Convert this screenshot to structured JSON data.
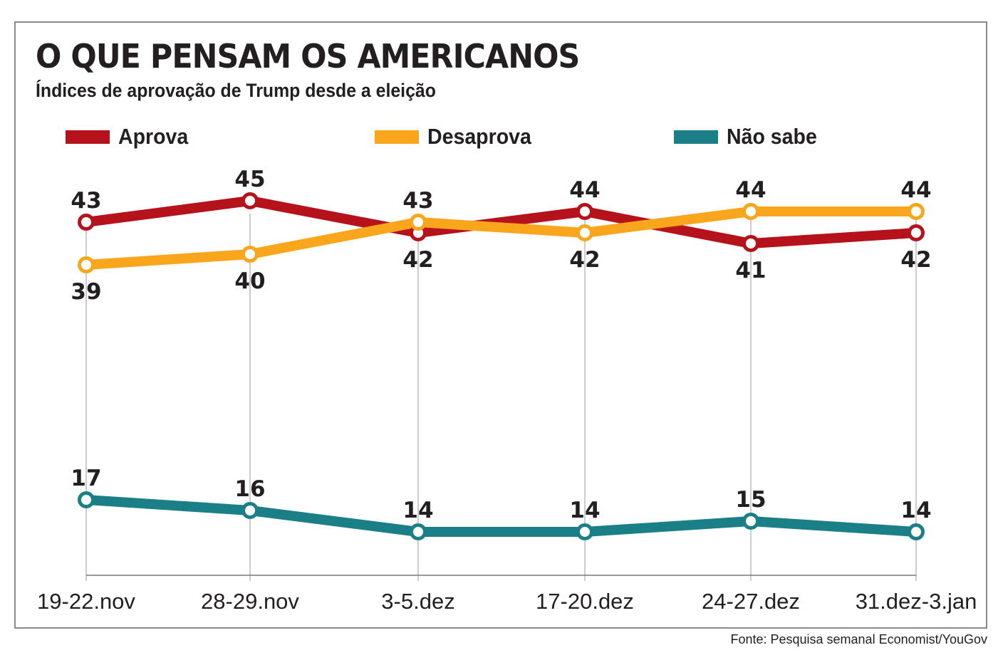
{
  "chart_data": {
    "type": "line",
    "title": "O QUE PENSAM OS AMERICANOS",
    "subtitle": "Índices de aprovação de Trump desde a eleição",
    "xlabel": "",
    "ylabel": "",
    "categories": [
      "19-22.nov",
      "28-29.nov",
      "3-5.dez",
      "17-20.dez",
      "24-27.dez",
      "31.dez-3.jan"
    ],
    "series": [
      {
        "name": "Aprova",
        "color": "#b5121b",
        "values": [
          43,
          45,
          42,
          44,
          41,
          42
        ],
        "label_pos": [
          "above",
          "above",
          "below",
          "above",
          "below",
          "below"
        ]
      },
      {
        "name": "Desaprova",
        "color": "#f9a61c",
        "values": [
          39,
          40,
          43,
          42,
          44,
          44
        ],
        "label_pos": [
          "below",
          "below",
          "above",
          "below",
          "above",
          "above"
        ]
      },
      {
        "name": "Não sabe",
        "color": "#1b7f88",
        "values": [
          17,
          16,
          14,
          14,
          15,
          14
        ],
        "label_pos": [
          "above",
          "above",
          "above",
          "above",
          "above",
          "above"
        ]
      }
    ],
    "ylim": [
      10,
      47
    ],
    "grid": "vertical",
    "legend": "top"
  },
  "source": "Fonte: Pesquisa semanal Economist/YouGov"
}
